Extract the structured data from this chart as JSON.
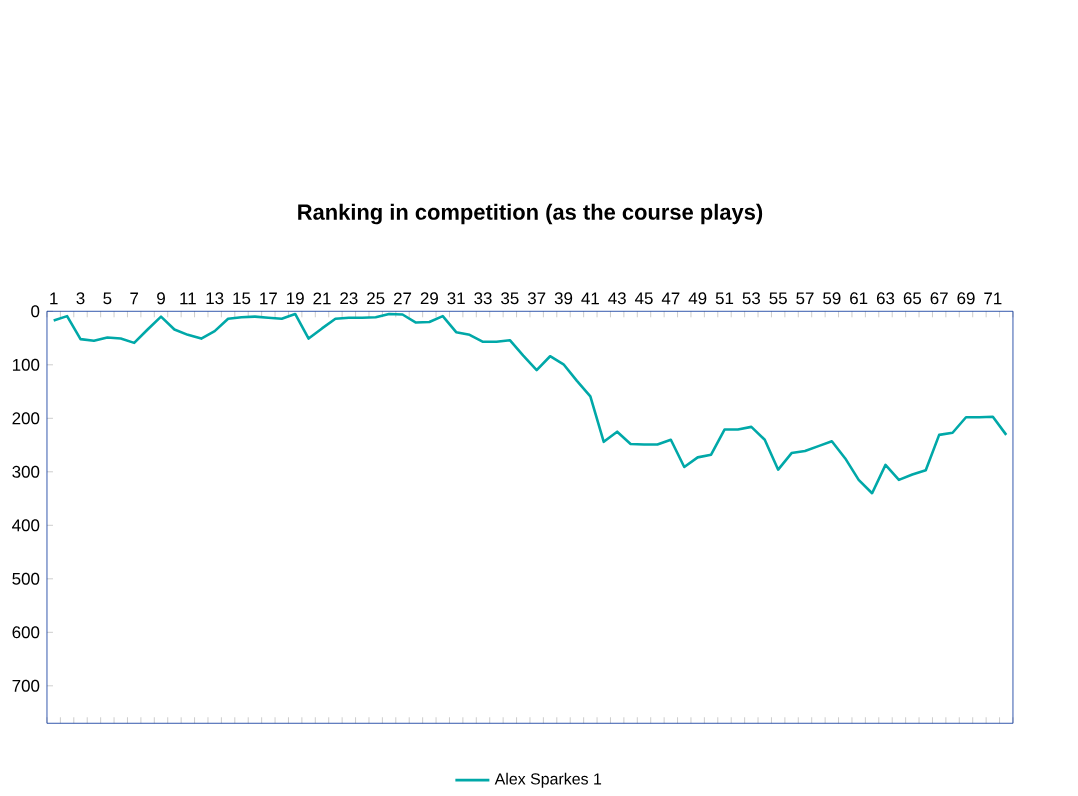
{
  "chart_data": {
    "type": "line",
    "title": "Ranking in competition (as the course plays)",
    "categories": [
      "1",
      null,
      "3",
      null,
      "5",
      null,
      "7",
      null,
      "9",
      null,
      "11",
      null,
      "13",
      null,
      "15",
      null,
      "17",
      null,
      "19",
      null,
      "21",
      null,
      "23",
      null,
      "25",
      null,
      "27",
      null,
      "29",
      null,
      "31",
      null,
      "33",
      null,
      "35",
      null,
      "37",
      null,
      "39",
      null,
      "41",
      null,
      "43",
      null,
      "45",
      null,
      "47",
      null,
      "49",
      null,
      "51",
      null,
      "53",
      null,
      "55",
      null,
      "57",
      null,
      "59",
      null,
      "61",
      null,
      "63",
      null,
      "65",
      null,
      "67",
      null,
      "69",
      null,
      "71",
      null
    ],
    "series": [
      {
        "name": "Alex Sparkes 1",
        "color": "#00a8a8",
        "values": [
          17,
          9,
          52,
          55,
          49,
          51,
          59,
          34,
          10,
          34,
          44,
          51,
          37,
          14,
          11,
          10,
          12,
          14,
          5,
          51,
          32,
          14,
          12,
          12,
          11,
          5,
          6,
          21,
          20,
          9,
          39,
          44,
          57,
          57,
          54,
          83,
          110,
          84,
          99,
          130,
          159,
          244,
          225,
          248,
          249,
          249,
          240,
          291,
          273,
          268,
          221,
          221,
          216,
          240,
          296,
          265,
          261,
          252,
          243,
          275,
          315,
          340,
          287,
          315,
          305,
          297,
          231,
          227,
          198,
          198,
          197,
          231
        ]
      }
    ],
    "ylim": [
      770,
      0
    ],
    "yticks": [
      0,
      100,
      200,
      300,
      400,
      500,
      600,
      700
    ],
    "grid": false,
    "legend": "bottom",
    "marker": "none",
    "line_style": "solid"
  }
}
